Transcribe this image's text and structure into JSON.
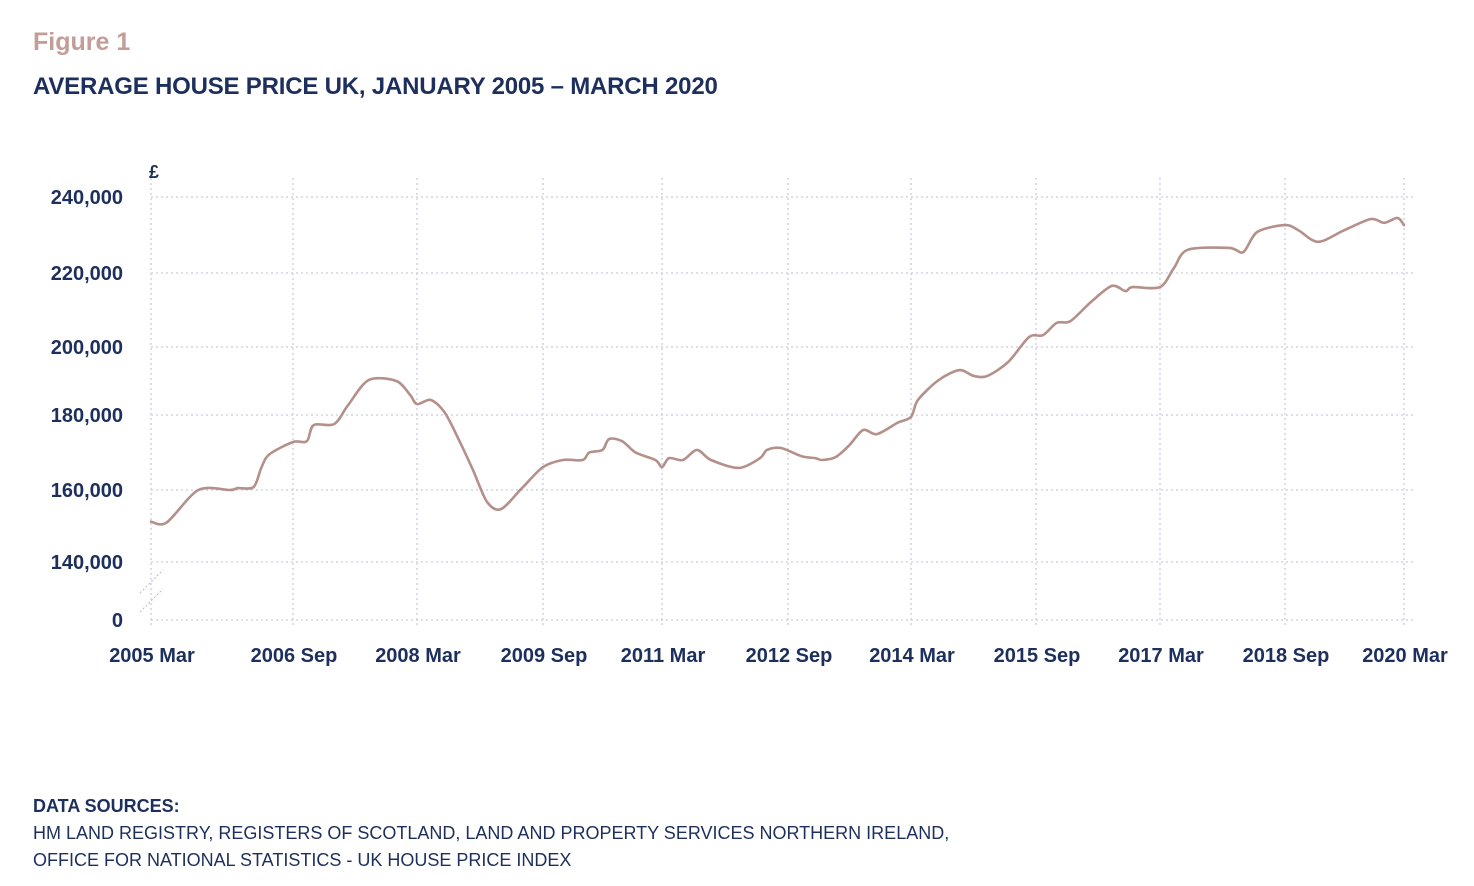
{
  "figure_label": "Figure 1",
  "title": "AVERAGE HOUSE PRICE UK, JANUARY 2005 – MARCH 2020",
  "sources": {
    "heading": "DATA SOURCES:",
    "lines": [
      "HM LAND REGISTRY, REGISTERS OF SCOTLAND, LAND AND PROPERTY SERVICES NORTHERN IRELAND,",
      "OFFICE FOR NATIONAL STATISTICS - UK HOUSE PRICE INDEX"
    ]
  },
  "colors": {
    "line": "#b4908a",
    "text": "#1d2f5c",
    "figure_label": "#c39d97",
    "grid": "#c9c9de"
  },
  "chart_data": {
    "type": "line",
    "title": "AVERAGE HOUSE PRICE UK, JANUARY 2005 – MARCH 2020",
    "xlabel": "",
    "ylabel": "£",
    "ylim": [
      0,
      240000
    ],
    "y_axis_break": [
      0,
      140000
    ],
    "grid": true,
    "legend": "none",
    "y_ticks": [
      {
        "value": 240000,
        "label": "240,000"
      },
      {
        "value": 220000,
        "label": "220,000"
      },
      {
        "value": 200000,
        "label": "200,000"
      },
      {
        "value": 180000,
        "label": "180,000"
      },
      {
        "value": 160000,
        "label": "160,000"
      },
      {
        "value": 140000,
        "label": "140,000"
      },
      {
        "value": 0,
        "label": "0"
      }
    ],
    "x_ticks": [
      {
        "date": "2005-03",
        "label": "2005 Mar"
      },
      {
        "date": "2006-09",
        "label": "2006 Sep"
      },
      {
        "date": "2008-03",
        "label": "2008 Mar"
      },
      {
        "date": "2009-09",
        "label": "2009 Sep"
      },
      {
        "date": "2011-03",
        "label": "2011 Mar"
      },
      {
        "date": "2012-09",
        "label": "2012 Sep"
      },
      {
        "date": "2014-03",
        "label": "2014 Mar"
      },
      {
        "date": "2015-09",
        "label": "2015 Sep"
      },
      {
        "date": "2017-03",
        "label": "2017 Mar"
      },
      {
        "date": "2018-09",
        "label": "2018 Sep"
      },
      {
        "date": "2020-03",
        "label": "2020 Mar"
      }
    ],
    "series": [
      {
        "points": [
          [
            "2005-03",
            151200
          ],
          [
            "2005-05",
            151000
          ],
          [
            "2005-09",
            160000
          ],
          [
            "2006-01",
            160000
          ],
          [
            "2006-02",
            160500
          ],
          [
            "2006-04",
            160800
          ],
          [
            "2006-05",
            166000
          ],
          [
            "2006-06",
            169500
          ],
          [
            "2006-09",
            172800
          ],
          [
            "2006-11",
            173000
          ],
          [
            "2006-12",
            177300
          ],
          [
            "2007-03",
            177600
          ],
          [
            "2007-05",
            182900
          ],
          [
            "2007-08",
            190300
          ],
          [
            "2007-12",
            190000
          ],
          [
            "2008-02",
            185900
          ],
          [
            "2008-03",
            183200
          ],
          [
            "2008-05",
            184400
          ],
          [
            "2008-07",
            180600
          ],
          [
            "2008-09",
            173300
          ],
          [
            "2008-11",
            165300
          ],
          [
            "2009-01",
            156700
          ],
          [
            "2009-03",
            154700
          ],
          [
            "2009-06",
            160500
          ],
          [
            "2009-09",
            166100
          ],
          [
            "2009-12",
            168000
          ],
          [
            "2010-03",
            168000
          ],
          [
            "2010-04",
            170000
          ],
          [
            "2010-06",
            170700
          ],
          [
            "2010-07",
            173600
          ],
          [
            "2010-09",
            173000
          ],
          [
            "2010-11",
            170000
          ],
          [
            "2011-02",
            168000
          ],
          [
            "2011-03",
            166100
          ],
          [
            "2011-04",
            168500
          ],
          [
            "2011-06",
            168000
          ],
          [
            "2011-08",
            170700
          ],
          [
            "2011-10",
            168000
          ],
          [
            "2012-02",
            165900
          ],
          [
            "2012-05",
            168500
          ],
          [
            "2012-06",
            170700
          ],
          [
            "2012-08",
            171200
          ],
          [
            "2012-11",
            169000
          ],
          [
            "2013-01",
            168500
          ],
          [
            "2013-02",
            168000
          ],
          [
            "2013-04",
            168800
          ],
          [
            "2013-06",
            172000
          ],
          [
            "2013-08",
            176000
          ],
          [
            "2013-10",
            174900
          ],
          [
            "2014-01",
            177900
          ],
          [
            "2014-03",
            179500
          ],
          [
            "2014-04",
            184400
          ],
          [
            "2014-07",
            190300
          ],
          [
            "2014-10",
            193200
          ],
          [
            "2014-12",
            191500
          ],
          [
            "2015-02",
            191500
          ],
          [
            "2015-05",
            195600
          ],
          [
            "2015-08",
            202700
          ],
          [
            "2015-10",
            203200
          ],
          [
            "2015-12",
            206500
          ],
          [
            "2016-02",
            207000
          ],
          [
            "2016-05",
            212200
          ],
          [
            "2016-08",
            216500
          ],
          [
            "2016-10",
            215100
          ],
          [
            "2016-11",
            216200
          ],
          [
            "2017-03",
            216200
          ],
          [
            "2017-05",
            221300
          ],
          [
            "2017-07",
            226100
          ],
          [
            "2018-01",
            226600
          ],
          [
            "2018-03",
            225500
          ],
          [
            "2018-05",
            230800
          ],
          [
            "2018-09",
            232600
          ],
          [
            "2018-11",
            231300
          ],
          [
            "2019-02",
            228200
          ],
          [
            "2019-06",
            231300
          ],
          [
            "2019-10",
            234200
          ],
          [
            "2019-12",
            233200
          ],
          [
            "2020-02",
            234500
          ],
          [
            "2020-03",
            232600
          ]
        ]
      }
    ]
  }
}
